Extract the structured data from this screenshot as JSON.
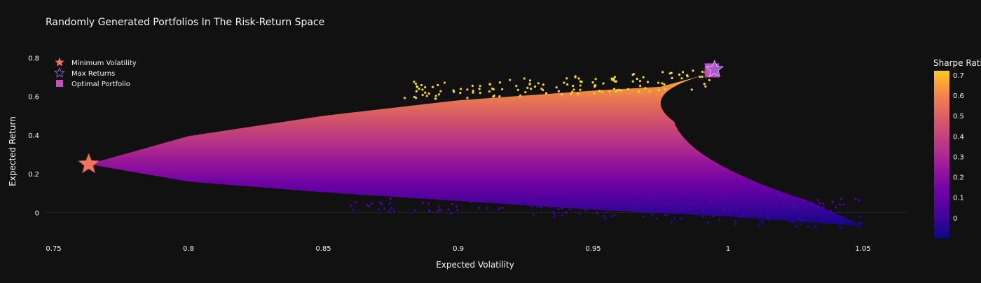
{
  "chart_data": {
    "type": "scatter",
    "title": "Randomly Generated Portfolios In The Risk-Return Space",
    "xlabel": "Expected Volatility",
    "ylabel": "Expected Return",
    "xlim": [
      0.747,
      1.067
    ],
    "ylim": [
      -0.125,
      0.845
    ],
    "x_ticks": [
      0.75,
      0.8,
      0.85,
      0.9,
      0.95,
      1,
      1.05
    ],
    "x_tick_labels": [
      "0.75",
      "0.8",
      "0.85",
      "0.9",
      "0.95",
      "1",
      "1.05"
    ],
    "y_ticks": [
      0,
      0.2,
      0.4,
      0.6,
      0.8
    ],
    "y_tick_labels": [
      "0",
      "0.2",
      "0.4",
      "0.6",
      "0.8"
    ],
    "grid": false,
    "legend_position": "top-left",
    "colorscale": "plasma",
    "colorbar": {
      "title": "Sharpe Ratio",
      "range": [
        -0.1,
        0.72
      ],
      "ticks": [
        0,
        0.1,
        0.2,
        0.3,
        0.4,
        0.5,
        0.6,
        0.7
      ],
      "tick_labels": [
        "0",
        "0.1",
        "0.2",
        "0.3",
        "0.4",
        "0.5",
        "0.6",
        "0.7"
      ]
    },
    "cloud": {
      "min_volatility_point": [
        0.763,
        0.25
      ],
      "upper_edge": [
        [
          0.763,
          0.25
        ],
        [
          0.8,
          0.395
        ],
        [
          0.85,
          0.5
        ],
        [
          0.9,
          0.58
        ],
        [
          0.95,
          0.63
        ],
        [
          0.975,
          0.65
        ],
        [
          0.995,
          0.725
        ]
      ],
      "lower_edge": [
        [
          0.763,
          0.25
        ],
        [
          0.8,
          0.16
        ],
        [
          0.85,
          0.105
        ],
        [
          0.9,
          0.06
        ],
        [
          0.95,
          0.015
        ],
        [
          1.0,
          -0.02
        ],
        [
          1.05,
          -0.07
        ]
      ],
      "frontier_tip": [
        0.98,
        0.47
      ]
    },
    "series": [
      {
        "name": "Minimum Volatility",
        "marker": "star",
        "color": "#f4735a",
        "x": 0.763,
        "y": 0.25
      },
      {
        "name": "Max Returns",
        "marker": "star",
        "color": "#a05cd6",
        "x": 0.995,
        "y": 0.74
      },
      {
        "name": "Optimal Portfolio",
        "marker": "square",
        "color": "#c84fc0",
        "x": 0.994,
        "y": 0.735
      }
    ]
  }
}
